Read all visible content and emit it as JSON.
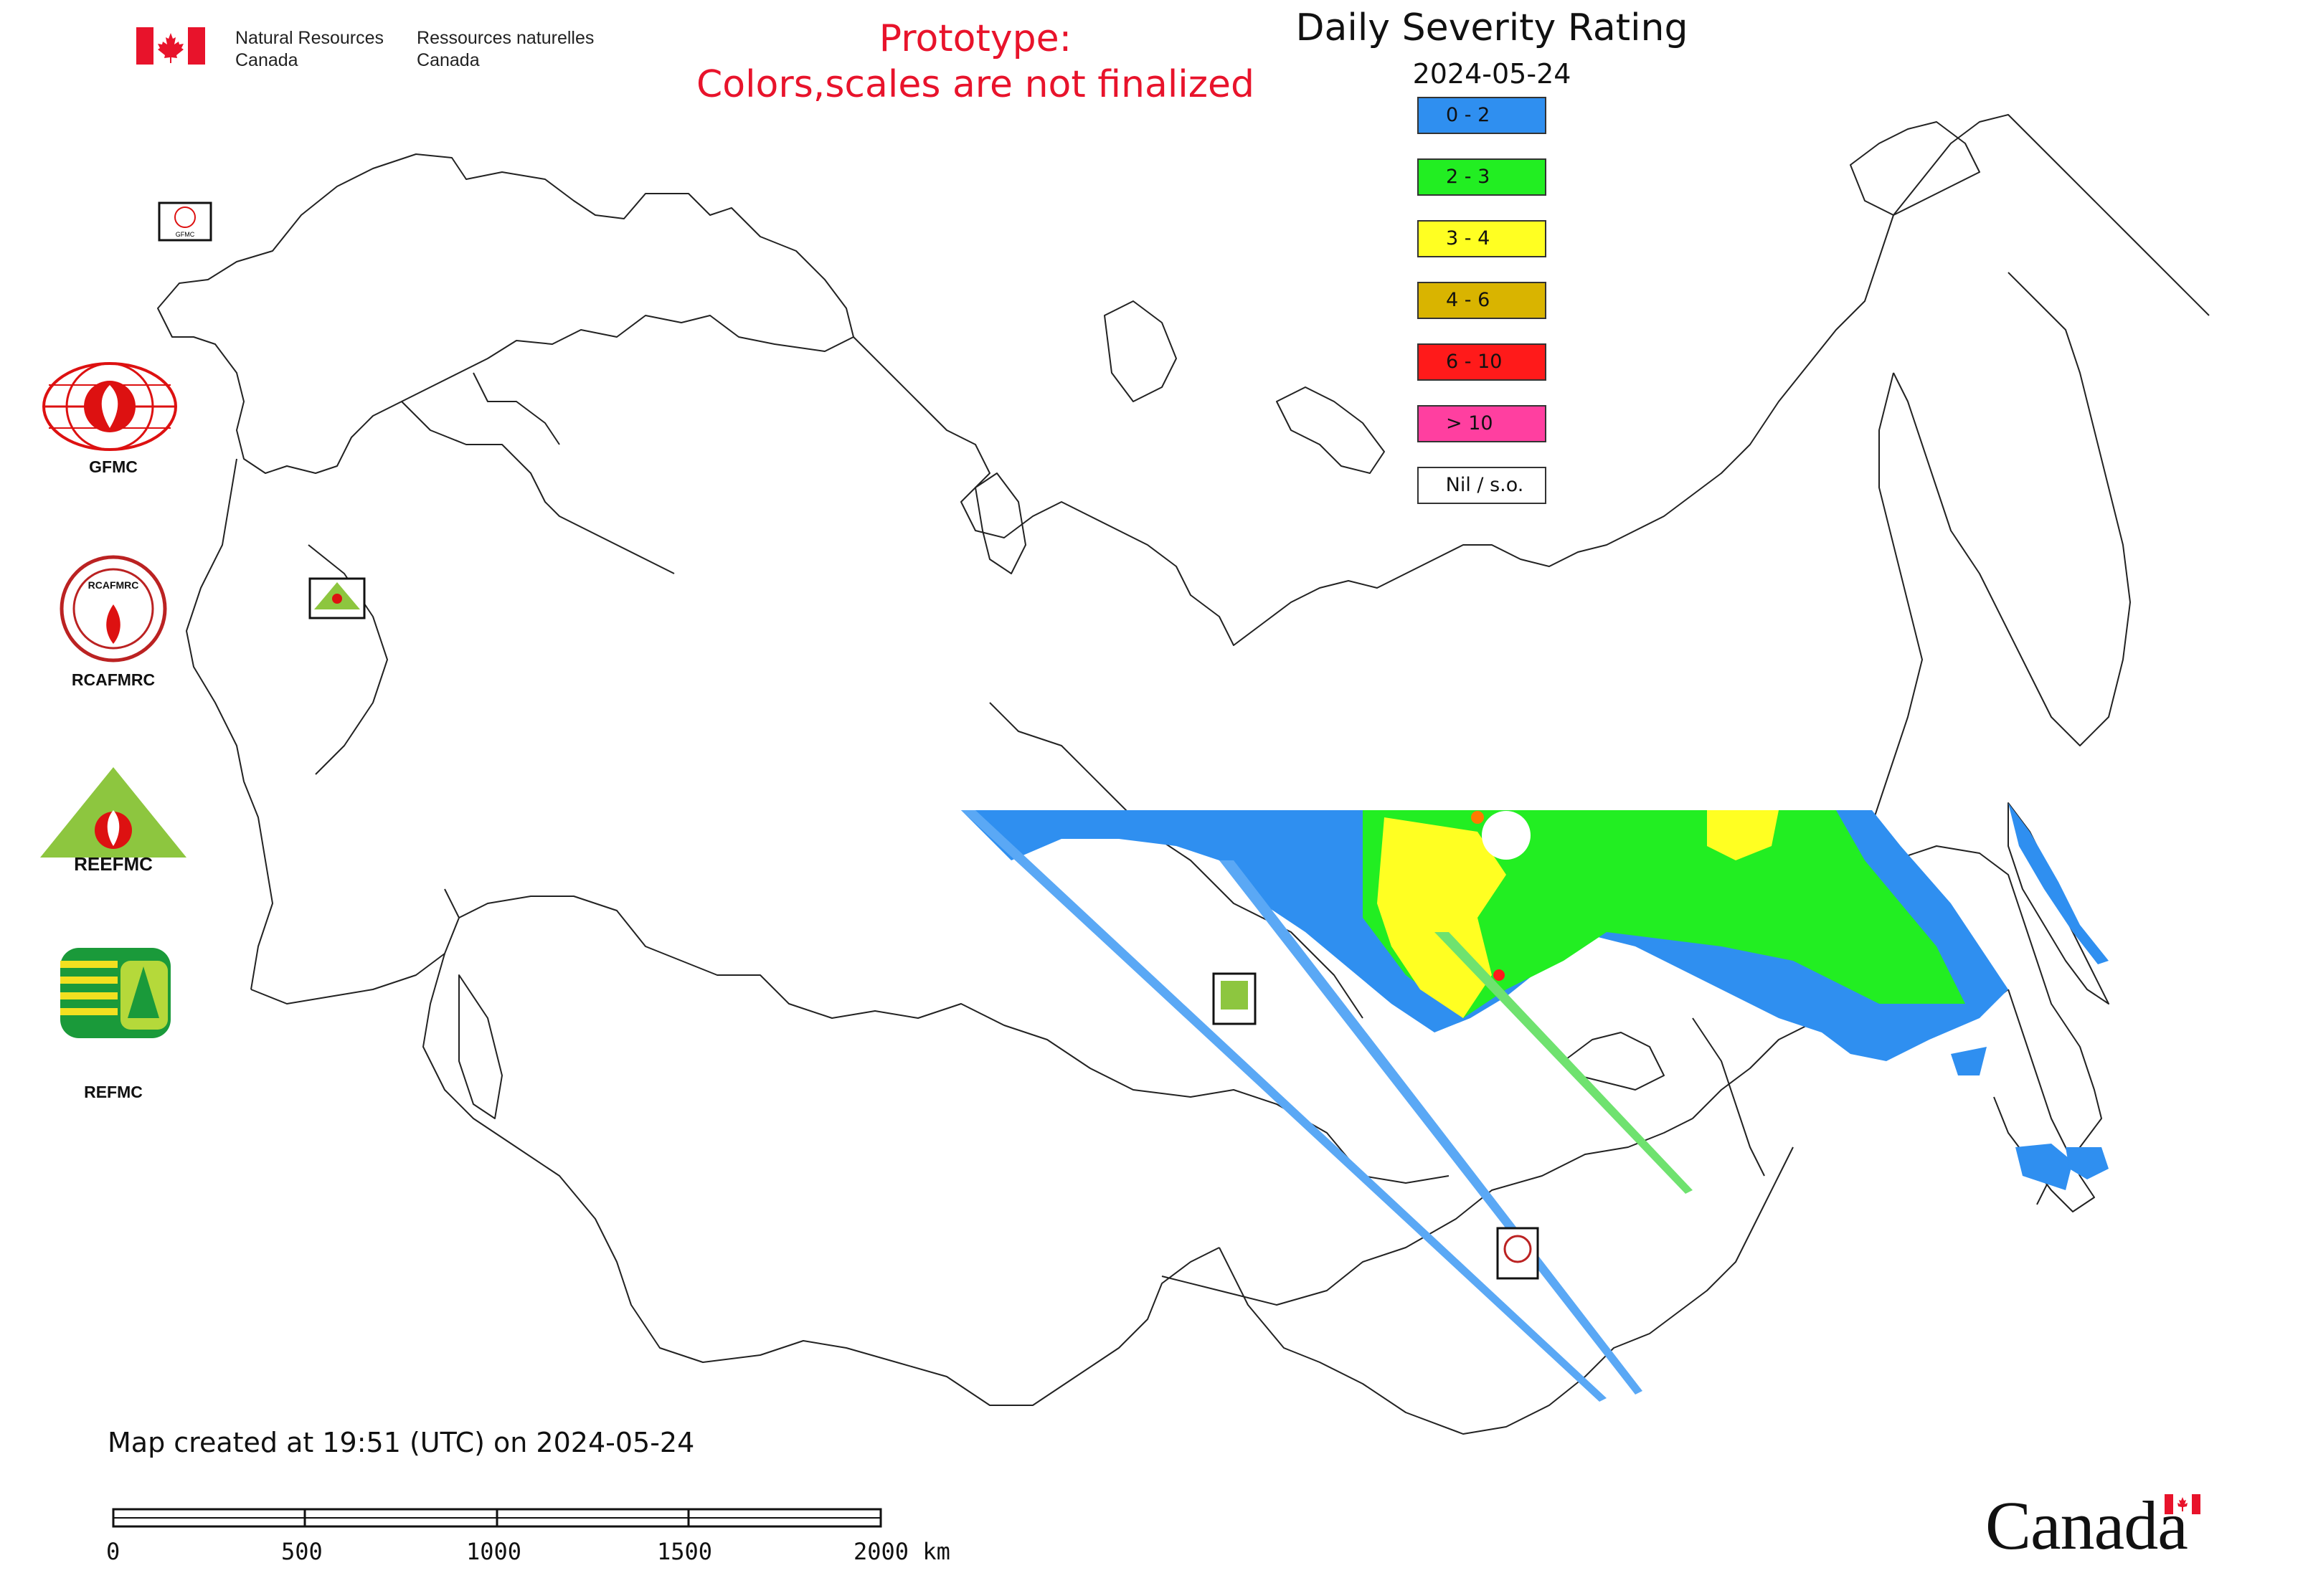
{
  "header": {
    "agency_en_1": "Natural Resources",
    "agency_en_2": "Canada",
    "agency_fr_1": "Ressources naturelles",
    "agency_fr_2": "Canada",
    "prototype_line1": "Prototype:",
    "prototype_line2": "Colors,scales are not finalized"
  },
  "legend": {
    "title": "Daily Severity Rating",
    "date": "2024-05-24",
    "items": [
      {
        "label": "0 - 2",
        "color": "#2f8ff0"
      },
      {
        "label": "2 - 3",
        "color": "#22ee22"
      },
      {
        "label": "3 - 4",
        "color": "#ffff22"
      },
      {
        "label": "4 - 6",
        "color": "#d9b400"
      },
      {
        "label": "6 - 10",
        "color": "#ff1a1a"
      },
      {
        "label": "> 10",
        "color": "#ff3fa0"
      },
      {
        "label": "Nil / s.o.",
        "color": "#ffffff"
      }
    ]
  },
  "logos": [
    {
      "name": "GFMC"
    },
    {
      "name": "RCAFMRC"
    },
    {
      "name": "REEFMC"
    },
    {
      "name": "REFMC"
    }
  ],
  "map_badges": {
    "gfmc_small": "GFMC",
    "reefmc_small": "REEFMC",
    "refmc_small": "REFMC",
    "rcafmrc_small": "RCAFMRC"
  },
  "footer": {
    "created": "Map created at 19:51 (UTC) on 2024-05-24",
    "scale_labels": [
      "0",
      "500",
      "1000",
      "1500",
      "2000 km"
    ],
    "wordmark": "Canada"
  }
}
